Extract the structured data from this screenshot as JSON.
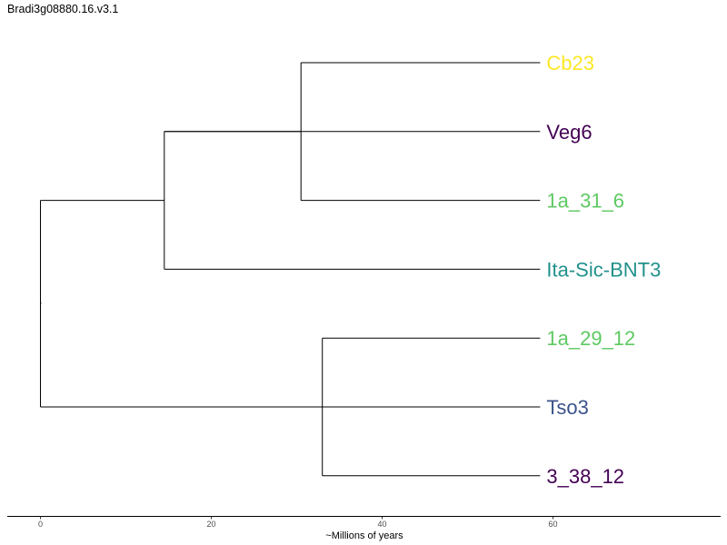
{
  "title": "Bradi3g08880.16.v3.1",
  "axis": {
    "label": "~Millions of years",
    "ticks": [
      0,
      20,
      40,
      60
    ]
  },
  "tree": {
    "leaves": [
      {
        "id": "Cb23",
        "label": "Cb23",
        "color": "#fde725"
      },
      {
        "id": "Veg6",
        "label": "Veg6",
        "color": "#440154"
      },
      {
        "id": "1a_31_6",
        "label": "1a_31_6",
        "color": "#5ec962"
      },
      {
        "id": "Ita-Sic-BNT3",
        "label": "Ita-Sic-BNT3",
        "color": "#21918c"
      },
      {
        "id": "1a_29_12",
        "label": "1a_29_12",
        "color": "#5ec962"
      },
      {
        "id": "Tso3",
        "label": "Tso3",
        "color": "#3b528b"
      },
      {
        "id": "3_38_12",
        "label": "3_38_12",
        "color": "#440154"
      }
    ],
    "tip_age": 58.5,
    "nodes": [
      {
        "id": "root",
        "age": 0,
        "children": [
          "A",
          "D"
        ]
      },
      {
        "id": "A",
        "age": 14.5,
        "children": [
          "B",
          "Ita-Sic-BNT3"
        ]
      },
      {
        "id": "B",
        "age": 30.5,
        "children": [
          "Cb23",
          "1a_31_6"
        ]
      },
      {
        "id": "D",
        "age": 33,
        "children": [
          "1a_29_12",
          "3_38_12"
        ]
      }
    ],
    "direct_edges": [
      {
        "from": "A",
        "to": "Veg6"
      },
      {
        "from": "root",
        "to": "Tso3"
      }
    ]
  }
}
